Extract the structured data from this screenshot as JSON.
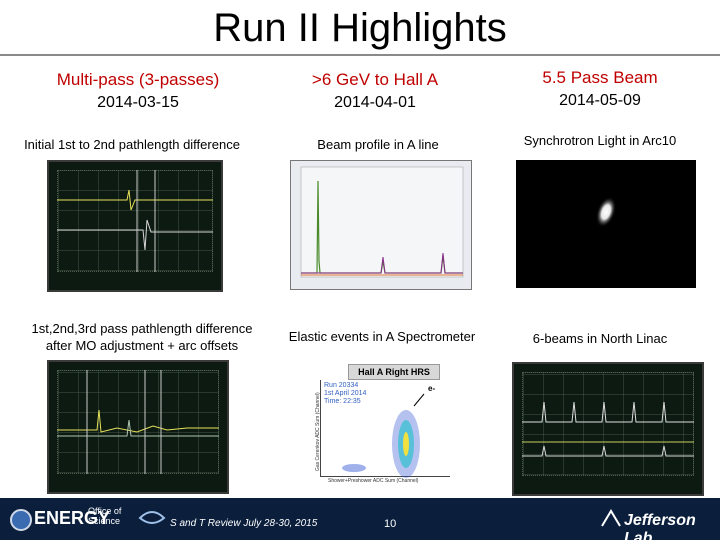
{
  "title": "Run II Highlights",
  "columns": [
    {
      "heading": "Multi-pass (3-passes)",
      "date": "2014-03-15"
    },
    {
      "heading": ">6 GeV to Hall A",
      "date": "2014-04-01"
    },
    {
      "heading": "5.5 Pass Beam",
      "date": "2014-05-09"
    }
  ],
  "captions": {
    "top_left": "Initial 1st to 2nd pathlength difference",
    "top_mid": "Beam profile in A line",
    "top_right": "Synchrotron Light in Arc10",
    "bot_left_1": "1st,2nd,3rd pass pathlength difference",
    "bot_left_2": "after MO adjustment + arc offsets",
    "bot_mid": "Elastic events in A Spectrometer",
    "bot_right": "6-beams in North Linac"
  },
  "scatter_plot": {
    "title": "Hall A Right HRS",
    "run": "Run 20334",
    "date": "1st April 2014",
    "time": "Time: 22:35",
    "ylabel": "Gas Cerenkov ADC Sum (Channel)",
    "xlabel": "Shower+Preshower ADC Sum (Channel)",
    "marker": "e-"
  },
  "footer": {
    "doe": "ENERGY",
    "office": "Office of",
    "science": "Science",
    "conference": "S and T Review July 28-30, 2015",
    "page": "10",
    "lab": "Jefferson Lab"
  },
  "colors": {
    "heading_red": "#c00000",
    "footer_bg": "#0b1f3c"
  }
}
